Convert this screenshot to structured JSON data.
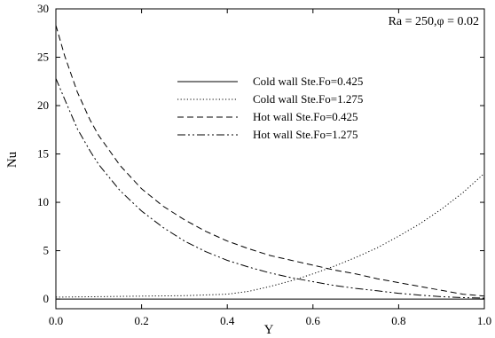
{
  "chart_data": {
    "type": "line",
    "title": "",
    "annotation": "Ra = 250,φ = 0.02",
    "xlabel": "Y",
    "ylabel": "Nu",
    "xlim": [
      0.0,
      1.0
    ],
    "ylim": [
      -1,
      30
    ],
    "xticks": [
      0.0,
      0.2,
      0.4,
      0.6,
      0.8,
      1.0
    ],
    "xtick_labels": [
      "0.0",
      "0.2",
      "0.4",
      "0.6",
      "0.8",
      "1.0"
    ],
    "yticks": [
      0,
      5,
      10,
      15,
      20,
      25,
      30
    ],
    "ytick_labels": [
      "0",
      "5",
      "10",
      "15",
      "20",
      "25",
      "30"
    ],
    "grid": false,
    "legend_position": "center-right",
    "series": [
      {
        "name": "Cold wall Ste.Fo=0.425",
        "dash": "solid",
        "x": [
          0.0,
          0.2,
          0.4,
          0.6,
          0.8,
          1.0
        ],
        "y": [
          0.0,
          0.0,
          0.0,
          0.0,
          0.0,
          0.0
        ]
      },
      {
        "name": "Cold wall Ste.Fo=1.275",
        "dash": "dotted",
        "x": [
          0.0,
          0.1,
          0.2,
          0.3,
          0.4,
          0.45,
          0.5,
          0.55,
          0.6,
          0.65,
          0.7,
          0.75,
          0.8,
          0.85,
          0.9,
          0.95,
          1.0
        ],
        "y": [
          0.2,
          0.25,
          0.3,
          0.35,
          0.5,
          0.8,
          1.3,
          1.9,
          2.6,
          3.4,
          4.3,
          5.3,
          6.5,
          7.8,
          9.3,
          11.0,
          13.0
        ]
      },
      {
        "name": "Hot wall Ste.Fo=0.425",
        "dash": "dashed",
        "x": [
          0.0,
          0.02,
          0.05,
          0.08,
          0.1,
          0.15,
          0.2,
          0.25,
          0.3,
          0.35,
          0.4,
          0.45,
          0.5,
          0.55,
          0.6,
          0.65,
          0.7,
          0.75,
          0.8,
          0.85,
          0.9,
          0.95,
          1.0
        ],
        "y": [
          28.3,
          25.2,
          21.4,
          18.5,
          16.9,
          13.8,
          11.4,
          9.6,
          8.2,
          7.0,
          6.0,
          5.2,
          4.5,
          4.0,
          3.5,
          3.0,
          2.6,
          2.1,
          1.7,
          1.3,
          0.9,
          0.5,
          0.3
        ]
      },
      {
        "name": "Hot wall Ste.Fo=1.275",
        "dash": "dash-dot-dot",
        "x": [
          0.0,
          0.02,
          0.05,
          0.08,
          0.1,
          0.15,
          0.2,
          0.25,
          0.3,
          0.35,
          0.4,
          0.45,
          0.5,
          0.55,
          0.6,
          0.65,
          0.7,
          0.75,
          0.8,
          0.85,
          0.9,
          0.95,
          1.0
        ],
        "y": [
          22.8,
          20.7,
          17.6,
          15.3,
          13.9,
          11.2,
          9.1,
          7.4,
          6.0,
          4.9,
          4.0,
          3.3,
          2.7,
          2.2,
          1.8,
          1.4,
          1.1,
          0.85,
          0.6,
          0.4,
          0.25,
          0.15,
          0.1
        ]
      }
    ]
  }
}
